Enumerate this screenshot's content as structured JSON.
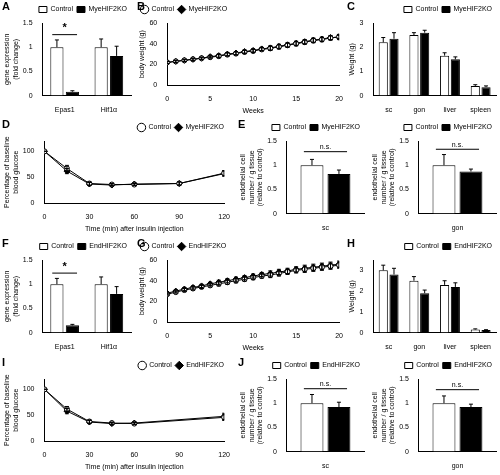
{
  "chart_data": [
    {
      "panel_label": "A",
      "type": "bar",
      "categories": [
        "Epas1",
        "Hif1α"
      ],
      "y_label": [
        "gene expression",
        "(fold change)"
      ],
      "ylim": [
        0,
        1.5
      ],
      "yticks": [
        0,
        0.5,
        1,
        1.5
      ],
      "grid": false,
      "legend": "top right",
      "series": [
        {
          "name": "Control",
          "color": "#ffffff",
          "values": [
            1,
            1
          ],
          "errors": [
            0.15,
            0.17
          ]
        },
        {
          "name": "MyeHIF2KO",
          "color": "#000000",
          "values": [
            0.08,
            0.82
          ],
          "errors": [
            0.02,
            0.2
          ]
        }
      ],
      "annotations": [
        {
          "text": "*",
          "category": "Epas1",
          "y": 1.28
        }
      ]
    },
    {
      "panel_label": "B",
      "type": "line",
      "x": [
        0,
        1,
        2,
        3,
        4,
        5,
        6,
        7,
        8,
        9,
        10,
        11,
        12,
        13,
        14,
        15,
        16,
        17,
        18,
        19,
        20
      ],
      "x_label": "Weeks",
      "y_label": "body weight (g)",
      "xlim": [
        0,
        20
      ],
      "xticks": [
        0,
        5,
        10,
        15,
        20
      ],
      "ylim": [
        0,
        60
      ],
      "yticks": [
        0,
        20,
        40,
        60
      ],
      "grid": false,
      "legend": "top left",
      "series": [
        {
          "name": "Control",
          "color": "#000000",
          "marker": "open_circle",
          "values": [
            22,
            23,
            24,
            25,
            26,
            27,
            28,
            29.5,
            30.5,
            32,
            33,
            34.5,
            35.5,
            37,
            38.5,
            40,
            41.5,
            43,
            44,
            45.5,
            47
          ],
          "errors": [
            1,
            1,
            1,
            1,
            1,
            1,
            1.5,
            1.5,
            1.5,
            1.5,
            1.5,
            1.5,
            2,
            2,
            2,
            2,
            2,
            2,
            2,
            2,
            2
          ]
        },
        {
          "name": "MyeHIF2KO",
          "color": "#000000",
          "marker": "diamond",
          "values": [
            22,
            23,
            24,
            25,
            26,
            27.5,
            28.5,
            30,
            31,
            32.5,
            33.5,
            35,
            36,
            37.5,
            39,
            40.5,
            42,
            43.5,
            44.5,
            46,
            46
          ],
          "errors": [
            1,
            1,
            1,
            1,
            1,
            1,
            1.5,
            1.5,
            1.5,
            1.5,
            1.5,
            1.5,
            2,
            2,
            2,
            2,
            2,
            2,
            2,
            2,
            2
          ]
        }
      ]
    },
    {
      "panel_label": "C",
      "type": "bar",
      "categories": [
        "sc",
        "gon",
        "liver",
        "spleen"
      ],
      "y_label": "Weight (g)",
      "ylim": [
        0,
        3
      ],
      "yticks": [
        0,
        1,
        2,
        3
      ],
      "grid": false,
      "legend": "top right",
      "series": [
        {
          "name": "Control",
          "color": "#ffffff",
          "values": [
            2.2,
            2.5,
            1.65,
            0.4
          ],
          "errors": [
            0.2,
            0.1,
            0.12,
            0.05
          ]
        },
        {
          "name": "MyeHIF2KO",
          "color": "#000000",
          "values": [
            2.35,
            2.6,
            1.5,
            0.35
          ],
          "errors": [
            0.25,
            0.1,
            0.1,
            0.05
          ]
        }
      ]
    },
    {
      "panel_label": "D",
      "type": "line",
      "x": [
        0,
        15,
        30,
        45,
        60,
        90,
        120
      ],
      "x_label": "Time (min) after insulin injection",
      "y_label": [
        "Percentage of baseline",
        "blood glucose"
      ],
      "xlim": [
        0,
        120
      ],
      "xticks": [
        0,
        30,
        60,
        90,
        120
      ],
      "ylim": [
        0,
        120
      ],
      "yticks": [
        0,
        50,
        100
      ],
      "grid": false,
      "legend": "top right",
      "series": [
        {
          "name": "Control",
          "color": "#000000",
          "marker": "open_circle",
          "values": [
            100,
            67,
            38,
            36,
            36,
            38,
            58
          ],
          "errors": [
            0,
            6,
            3,
            2,
            2,
            3,
            5
          ]
        },
        {
          "name": "MyeHIF2KO",
          "color": "#000000",
          "marker": "diamond",
          "values": [
            100,
            62,
            37,
            35,
            37,
            38,
            57
          ],
          "errors": [
            0,
            5,
            3,
            2,
            2,
            3,
            5
          ]
        }
      ]
    },
    {
      "panel_label": "E",
      "type": "bar",
      "categories": [
        "sc"
      ],
      "y_label": [
        "endothelial cell",
        "number / g tissue",
        "(relative to control)"
      ],
      "ylim": [
        0,
        1.5
      ],
      "yticks": [
        0,
        0.5,
        1,
        1.5
      ],
      "grid": false,
      "legend": "top right",
      "series": [
        {
          "name": "Control",
          "color": "#ffffff",
          "values": [
            1
          ],
          "errors": [
            0.12
          ]
        },
        {
          "name": "MyeHIF2KO",
          "color": "#000000",
          "values": [
            0.82
          ],
          "errors": [
            0.08
          ]
        }
      ],
      "annotations": [
        {
          "text": "n.s.",
          "category": "sc",
          "y": 1.3
        }
      ]
    },
    {
      "type": "bar",
      "categories": [
        "gon"
      ],
      "y_label": [
        "endothelial cell",
        "number / g tissue",
        "(relative to control)"
      ],
      "ylim": [
        0,
        1.5
      ],
      "yticks": [
        0,
        0.5,
        1,
        1.5
      ],
      "grid": false,
      "legend": "top right",
      "series": [
        {
          "name": "Control",
          "color": "#ffffff",
          "values": [
            1
          ],
          "errors": [
            0.22
          ]
        },
        {
          "name": "MyeHIF2KO",
          "color": "#000000",
          "values": [
            0.87
          ],
          "errors": [
            0.05
          ]
        }
      ],
      "annotations": [
        {
          "text": "n.s.",
          "category": "gon",
          "y": 1.35
        }
      ]
    },
    {
      "panel_label": "F",
      "type": "bar",
      "categories": [
        "Epas1",
        "Hif1α"
      ],
      "y_label": [
        "gene expression",
        "(fold change)"
      ],
      "ylim": [
        0,
        1.5
      ],
      "yticks": [
        0,
        0.5,
        1,
        1.5
      ],
      "grid": false,
      "legend": "top right",
      "series": [
        {
          "name": "Control",
          "color": "#ffffff",
          "values": [
            1,
            1
          ],
          "errors": [
            0.12,
            0.15
          ]
        },
        {
          "name": "EndHIF2KO",
          "color": "#000000",
          "values": [
            0.15,
            0.8
          ],
          "errors": [
            0.02,
            0.15
          ]
        }
      ],
      "annotations": [
        {
          "text": "*",
          "category": "Epas1",
          "y": 1.25
        }
      ]
    },
    {
      "panel_label": "G",
      "type": "line",
      "x": [
        0,
        1,
        2,
        3,
        4,
        5,
        6,
        7,
        8,
        9,
        10,
        11,
        12,
        13,
        14,
        15,
        16,
        17,
        18,
        19,
        20
      ],
      "x_label": "Weeks",
      "y_label": "body weight (g)",
      "xlim": [
        0,
        20
      ],
      "xticks": [
        0,
        5,
        10,
        15,
        20
      ],
      "ylim": [
        0,
        60
      ],
      "yticks": [
        0,
        20,
        40,
        60
      ],
      "grid": false,
      "legend": "top left",
      "series": [
        {
          "name": "Control",
          "color": "#000000",
          "marker": "open_circle",
          "values": [
            27,
            29,
            31,
            32.5,
            34,
            35.5,
            37,
            38.5,
            40,
            41.5,
            43,
            44.5,
            45.5,
            47,
            48.5,
            50,
            51,
            52,
            53,
            54,
            55
          ],
          "errors": [
            1,
            1,
            1.5,
            1.5,
            1.5,
            1.5,
            2,
            2,
            2,
            2,
            2,
            2,
            2.5,
            2.5,
            2.5,
            2.5,
            3,
            3,
            3,
            3,
            3
          ]
        },
        {
          "name": "EndHIF2KO",
          "color": "#000000",
          "marker": "diamond",
          "values": [
            28,
            30,
            32,
            33.5,
            35,
            37,
            38.5,
            40,
            41.5,
            43,
            44.5,
            46,
            47,
            48.5,
            49.5,
            51,
            52,
            53,
            54,
            55,
            56
          ],
          "errors": [
            1,
            1,
            1.5,
            1.5,
            1.5,
            1.5,
            2,
            2,
            2,
            2,
            2,
            2,
            2.5,
            2.5,
            2.5,
            2.5,
            3,
            3,
            3,
            3,
            3
          ]
        }
      ]
    },
    {
      "panel_label": "H",
      "type": "bar",
      "categories": [
        "sc",
        "gon",
        "liver",
        "spleen"
      ],
      "y_label": "Weight (g)",
      "ylim": [
        0,
        3.5
      ],
      "yticks": [
        0,
        1,
        2,
        3
      ],
      "grid": false,
      "legend": "top right",
      "series": [
        {
          "name": "Control",
          "color": "#ffffff",
          "values": [
            3,
            2.5,
            2.3,
            0.15
          ],
          "errors": [
            0.25,
            0.2,
            0.2,
            0.03
          ]
        },
        {
          "name": "EndHIF2KO",
          "color": "#000000",
          "values": [
            2.8,
            1.9,
            2.2,
            0.12
          ],
          "errors": [
            0.3,
            0.15,
            0.2,
            0.02
          ]
        }
      ]
    },
    {
      "panel_label": "I",
      "type": "line",
      "x": [
        0,
        15,
        30,
        45,
        60,
        120
      ],
      "x_label": "Time (min) after insulin injection",
      "y_label": [
        "Percentage of baseline",
        "blood glucose"
      ],
      "xlim": [
        0,
        120
      ],
      "xticks": [
        0,
        30,
        60,
        90,
        120
      ],
      "ylim": [
        0,
        120
      ],
      "yticks": [
        0,
        50,
        100
      ],
      "grid": false,
      "legend": "top right",
      "series": [
        {
          "name": "Control",
          "color": "#000000",
          "marker": "open_circle",
          "values": [
            100,
            62,
            38,
            35,
            34,
            46
          ],
          "errors": [
            0,
            5,
            3,
            2,
            2,
            6
          ]
        },
        {
          "name": "EndHIF2KO",
          "color": "#000000",
          "marker": "diamond",
          "values": [
            100,
            58,
            37,
            34,
            35,
            48
          ],
          "errors": [
            0,
            5,
            3,
            2,
            2,
            6
          ]
        }
      ]
    },
    {
      "panel_label": "J",
      "type": "bar",
      "categories": [
        "sc"
      ],
      "y_label": [
        "endothelial cell",
        "number / g tissue",
        "(relative to control)"
      ],
      "ylim": [
        0,
        1.5
      ],
      "yticks": [
        0,
        0.5,
        1,
        1.5
      ],
      "grid": false,
      "legend": "top right",
      "series": [
        {
          "name": "Control",
          "color": "#ffffff",
          "values": [
            1
          ],
          "errors": [
            0.18
          ]
        },
        {
          "name": "EndHIF2KO",
          "color": "#000000",
          "values": [
            0.92
          ],
          "errors": [
            0.1
          ]
        }
      ],
      "annotations": [
        {
          "text": "n.s.",
          "category": "sc",
          "y": 1.32
        }
      ]
    },
    {
      "type": "bar",
      "categories": [
        "gon"
      ],
      "y_label": [
        "endothelial cell",
        "number / g tissue",
        "(relative to control)"
      ],
      "ylim": [
        0,
        1.5
      ],
      "yticks": [
        0,
        0.5,
        1,
        1.5
      ],
      "grid": false,
      "legend": "top right",
      "series": [
        {
          "name": "Control",
          "color": "#ffffff",
          "values": [
            1
          ],
          "errors": [
            0.15
          ]
        },
        {
          "name": "EndHIF2KO",
          "color": "#000000",
          "values": [
            0.92
          ],
          "errors": [
            0.06
          ]
        }
      ],
      "annotations": [
        {
          "text": "n.s.",
          "category": "gon",
          "y": 1.3
        }
      ]
    }
  ]
}
